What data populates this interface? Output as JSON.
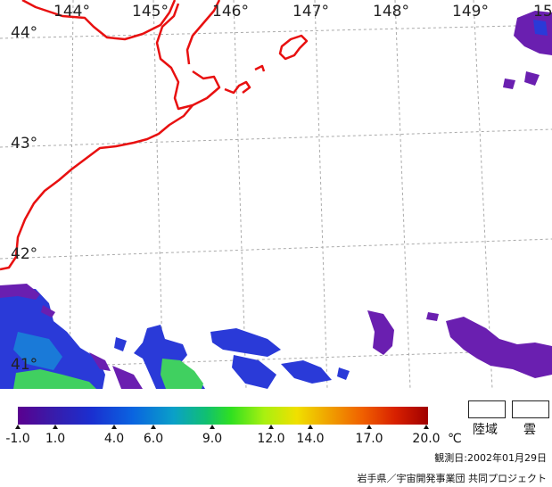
{
  "map": {
    "lon_labels": [
      "144°",
      "145°",
      "146°",
      "147°",
      "148°",
      "149°",
      "15"
    ],
    "lat_labels": [
      "44°",
      "43°",
      "42°",
      "41°"
    ]
  },
  "colorbar": {
    "ticks": [
      "-1.0",
      "1.0",
      "4.0",
      "6.0",
      "9.0",
      "12.0",
      "14.0",
      "17.0",
      "20.0"
    ],
    "unit": "℃",
    "colors": [
      "#5a008f",
      "#3a1aa8",
      "#1a2fd0",
      "#0a64e0",
      "#0aa0c8",
      "#10c070",
      "#30e020",
      "#a8f010",
      "#f0e000",
      "#f0a000",
      "#f06000",
      "#d82000",
      "#a00000"
    ]
  },
  "legend_boxes": {
    "land_label": "陸域",
    "cloud_label": "雲"
  },
  "footer": {
    "observation_date": "観測日:2002年01月29日",
    "credit": "岩手県／宇宙開発事業団 共同プロジェクト"
  },
  "colors": {
    "coastline": "#e81010",
    "grid": "#aaaaaa",
    "sst_purple": "#6a1fb0",
    "sst_blue": "#2a3ad8",
    "sst_green": "#40d060"
  }
}
